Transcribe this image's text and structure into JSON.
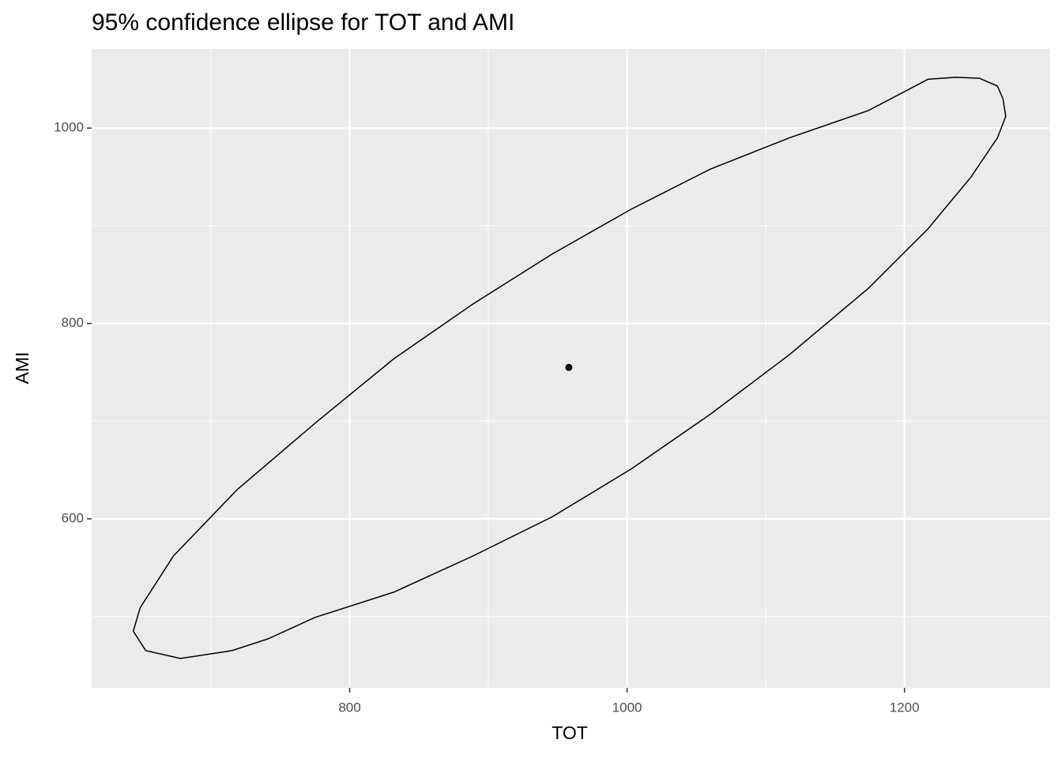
{
  "chart_data": {
    "type": "ellipse",
    "title": "95% confidence ellipse for TOT and AMI",
    "x_label": "TOT",
    "y_label": "AMI",
    "xlim": [
      614,
      1305
    ],
    "ylim": [
      427,
      1081
    ],
    "xticks": [
      800,
      1000,
      1200
    ],
    "yticks": [
      600,
      800,
      1000
    ],
    "x_minor": [
      700,
      900,
      1100
    ],
    "y_minor": [
      500,
      700,
      900
    ],
    "grid": true,
    "color": "#000000",
    "ellipse": {
      "x": [
        1271,
        1273,
        1267,
        1248,
        1217,
        1174,
        1117,
        1060,
        1003,
        946,
        889,
        832,
        775,
        741,
        715,
        678,
        653,
        644,
        649,
        673,
        719,
        776,
        832,
        889,
        946,
        1003,
        1060,
        1117,
        1174,
        1217,
        1237,
        1254,
        1267,
        1271
      ],
      "y": [
        1030,
        1012,
        990,
        950,
        897,
        836,
        768,
        707,
        651,
        602,
        562,
        525,
        499,
        477,
        465,
        457,
        465,
        485,
        509,
        562,
        630,
        699,
        764,
        820,
        871,
        917,
        958,
        990,
        1018,
        1050,
        1052,
        1051,
        1043,
        1030
      ]
    },
    "center": {
      "x": 958,
      "y": 755
    }
  }
}
